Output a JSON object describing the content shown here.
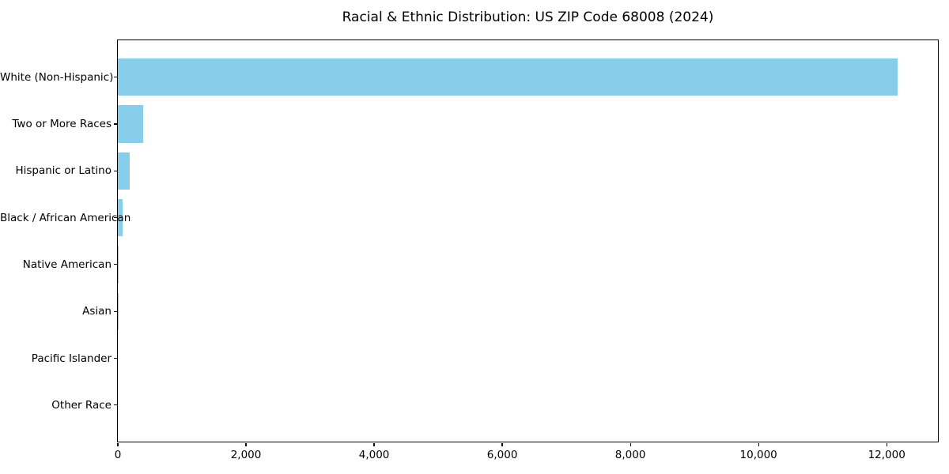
{
  "chart_data": {
    "type": "bar",
    "orientation": "horizontal",
    "title": "Racial & Ethnic Distribution: US ZIP Code 68008 (2024)",
    "categories": [
      "White (Non-Hispanic)",
      "Two or More Races",
      "Hispanic or Latino",
      "Black / African American",
      "Native American",
      "Asian",
      "Pacific Islander",
      "Other Race"
    ],
    "values": [
      12170,
      400,
      180,
      75,
      15,
      10,
      0,
      0
    ],
    "xlabel": "",
    "ylabel": "",
    "xlim": [
      0,
      12800
    ],
    "xticks": [
      0,
      2000,
      4000,
      6000,
      8000,
      10000,
      12000
    ],
    "xtick_labels": [
      "0",
      "2,000",
      "4,000",
      "6,000",
      "8,000",
      "10,000",
      "12,000"
    ],
    "grid": false,
    "legend": null,
    "bar_color": "#87CEEB",
    "axis_color": "#000000",
    "background_color": "#ffffff"
  }
}
